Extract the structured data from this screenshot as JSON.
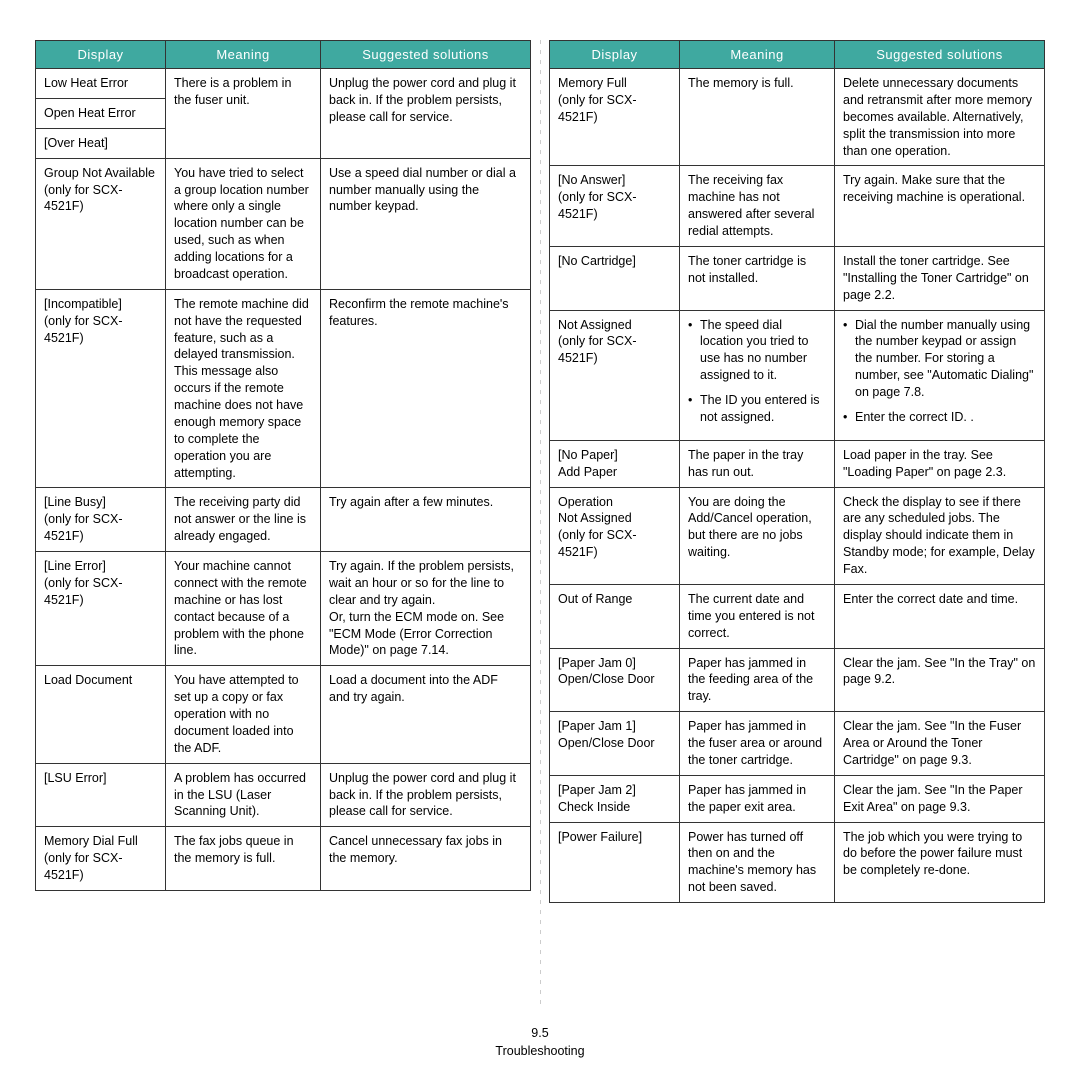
{
  "style": {
    "header_bg": "#3fa9a0",
    "header_color": "#ffffff",
    "header_fontsize": "13px",
    "cell_fontsize": "12.5px",
    "border_color": "#333333"
  },
  "headers": {
    "display": "Display",
    "meaning": "Meaning",
    "solutions": "Suggested solutions"
  },
  "left": [
    {
      "display": "Low Heat Error",
      "meaning": "There is a problem in the fuser unit.",
      "solutions": "Unplug the power cord and plug it back in. If the problem persists, please call for service.",
      "mrow": 3,
      "srow": 3
    },
    {
      "display": "Open Heat Error"
    },
    {
      "display": "[Over Heat]"
    },
    {
      "display": "Group Not Available\n(only for SCX-4521F)",
      "meaning": "You have tried to select a group location number where only a single location number can be used, such as when adding locations for a broadcast operation.",
      "solutions": "Use a speed dial number or dial a number manually using the number keypad."
    },
    {
      "display": "[Incompatible]\n(only for SCX-4521F)",
      "meaning": "The remote machine did not have the requested feature, such as a delayed transmission.\nThis message also occurs if the remote machine does not have enough memory space to complete the operation you are attempting.",
      "solutions": "Reconfirm the remote machine's features."
    },
    {
      "display": "[Line Busy]\n(only for SCX-4521F)",
      "meaning": "The receiving party did not answer or the line is already engaged.",
      "solutions": "Try again after a few minutes."
    },
    {
      "display": "[Line Error]\n(only for SCX-4521F)",
      "meaning": "Your machine cannot connect with the remote machine or has lost contact because of a problem with the phone line.",
      "solutions": "Try again. If the problem persists, wait an hour or so for the line to clear and try again.\nOr, turn the ECM mode on. See \"ECM Mode (Error Correction Mode)\" on page 7.14."
    },
    {
      "display": "Load Document",
      "meaning": "You have attempted to set up a copy or fax operation with no document loaded into the ADF.",
      "solutions": "Load a document into the ADF and try again."
    },
    {
      "display": "[LSU Error]",
      "meaning": "A problem has occurred in the LSU (Laser Scanning Unit).",
      "solutions": "Unplug the power cord and plug it back in. If the problem persists, please call for service."
    },
    {
      "display": "Memory Dial Full\n(only for SCX-4521F)",
      "meaning": "The fax jobs queue in the memory is full.",
      "solutions": "Cancel unnecessary fax jobs in the memory."
    }
  ],
  "right": [
    {
      "display": "Memory Full\n(only for SCX-4521F)",
      "meaning": "The memory is full.",
      "solutions": "Delete unnecessary documents and retransmit after more memory becomes available. Alternatively, split the transmission into more than one operation."
    },
    {
      "display": "[No Answer]\n(only for SCX-4521F)",
      "meaning": "The receiving fax machine has not answered after several redial attempts.",
      "solutions": "Try again. Make sure that the receiving machine is operational."
    },
    {
      "display": "[No Cartridge]",
      "meaning": "The toner cartridge is not installed.",
      "solutions": "Install the toner cartridge. See \"Installing the Toner Cartridge\" on page 2.2."
    },
    {
      "display": "Not Assigned\n(only for SCX-4521F)",
      "meaning_list": [
        "The speed dial location you tried to use has no number assigned to it.",
        "The ID you entered is not assigned."
      ],
      "solutions_list": [
        "Dial the number manually using the number keypad or assign the number. For storing a number, see \"Automatic Dialing\" on page 7.8.",
        "Enter the correct ID. ."
      ]
    },
    {
      "display": "[No Paper]\nAdd Paper",
      "meaning": "The paper in the tray has run out.",
      "solutions": "Load paper in the tray. See \"Loading Paper\" on page 2.3."
    },
    {
      "display": "Operation\nNot Assigned\n(only for SCX-4521F)",
      "meaning": "You are doing the Add/Cancel operation, but there are no jobs waiting.",
      "solutions": "Check the display to see if there are any scheduled jobs. The display should indicate them in Standby mode; for example, Delay Fax."
    },
    {
      "display": "Out of Range",
      "meaning": "The current date and time you entered is not correct.",
      "solutions": "Enter the correct date and time."
    },
    {
      "display": "[Paper Jam 0]\nOpen/Close Door",
      "meaning": "Paper has jammed in the feeding area of the tray.",
      "solutions": "Clear the jam. See \"In the Tray\" on page 9.2."
    },
    {
      "display": "[Paper Jam 1]\nOpen/Close Door",
      "meaning": "Paper has jammed in the fuser area or around the toner cartridge.",
      "solutions": "Clear the jam. See \"In the Fuser Area or Around the Toner Cartridge\" on page 9.3."
    },
    {
      "display": "[Paper Jam 2]\nCheck Inside",
      "meaning": "Paper has jammed in the paper exit area.",
      "solutions": "Clear the jam. See \"In the Paper Exit Area\" on page 9.3."
    },
    {
      "display": "[Power Failure]",
      "meaning": "Power has turned off then on and the machine's memory has not been saved.",
      "solutions": "The job which you were trying to do before the power failure must be completely re-done."
    }
  ],
  "footer": {
    "pagenum": "9.5",
    "section": "Troubleshooting"
  }
}
